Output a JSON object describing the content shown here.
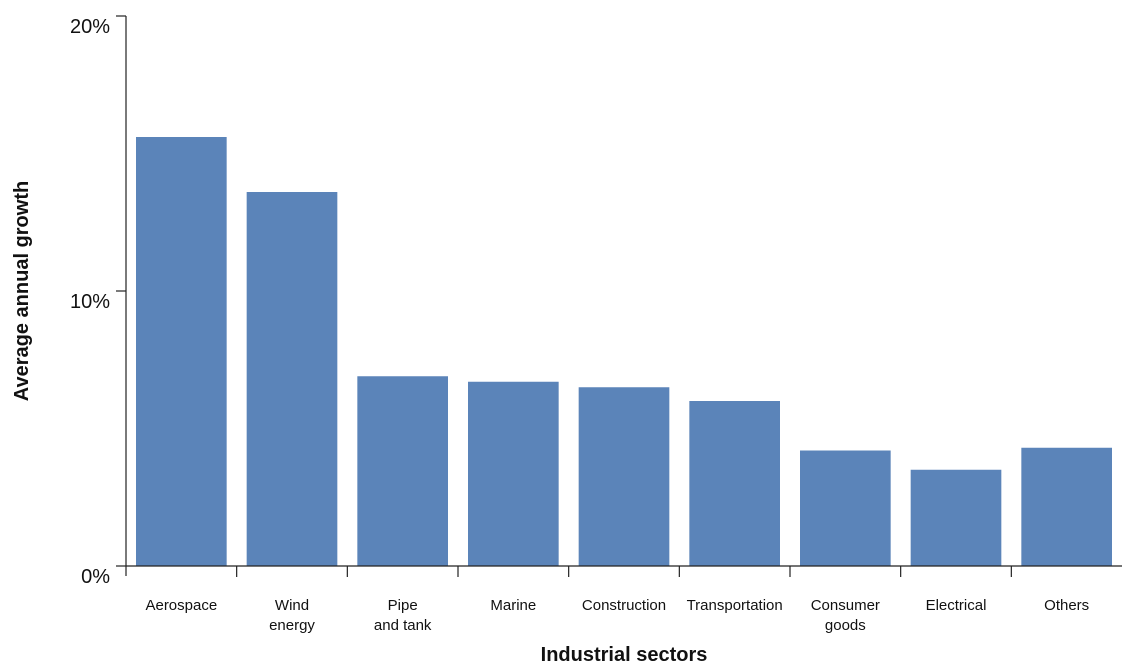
{
  "chart_data": {
    "type": "bar",
    "xlabel": "Industrial sectors",
    "ylabel": "Average annual growth",
    "categories": [
      [
        "Aerospace"
      ],
      [
        "Wind",
        "energy"
      ],
      [
        "Pipe",
        "and tank"
      ],
      [
        "Marine"
      ],
      [
        "Construction"
      ],
      [
        "Transportation"
      ],
      [
        "Consumer",
        "goods"
      ],
      [
        "Electrical"
      ],
      [
        "Others"
      ]
    ],
    "values": [
      15.6,
      13.6,
      6.9,
      6.7,
      6.5,
      6.0,
      4.2,
      3.5,
      4.3
    ],
    "ylim": [
      0,
      20
    ],
    "yticks": [
      0,
      10,
      20
    ],
    "ytick_labels": [
      "0%",
      "10%",
      "20%"
    ],
    "grid": false,
    "bar_color": "#5b84b9",
    "axis_color": "#222222"
  }
}
